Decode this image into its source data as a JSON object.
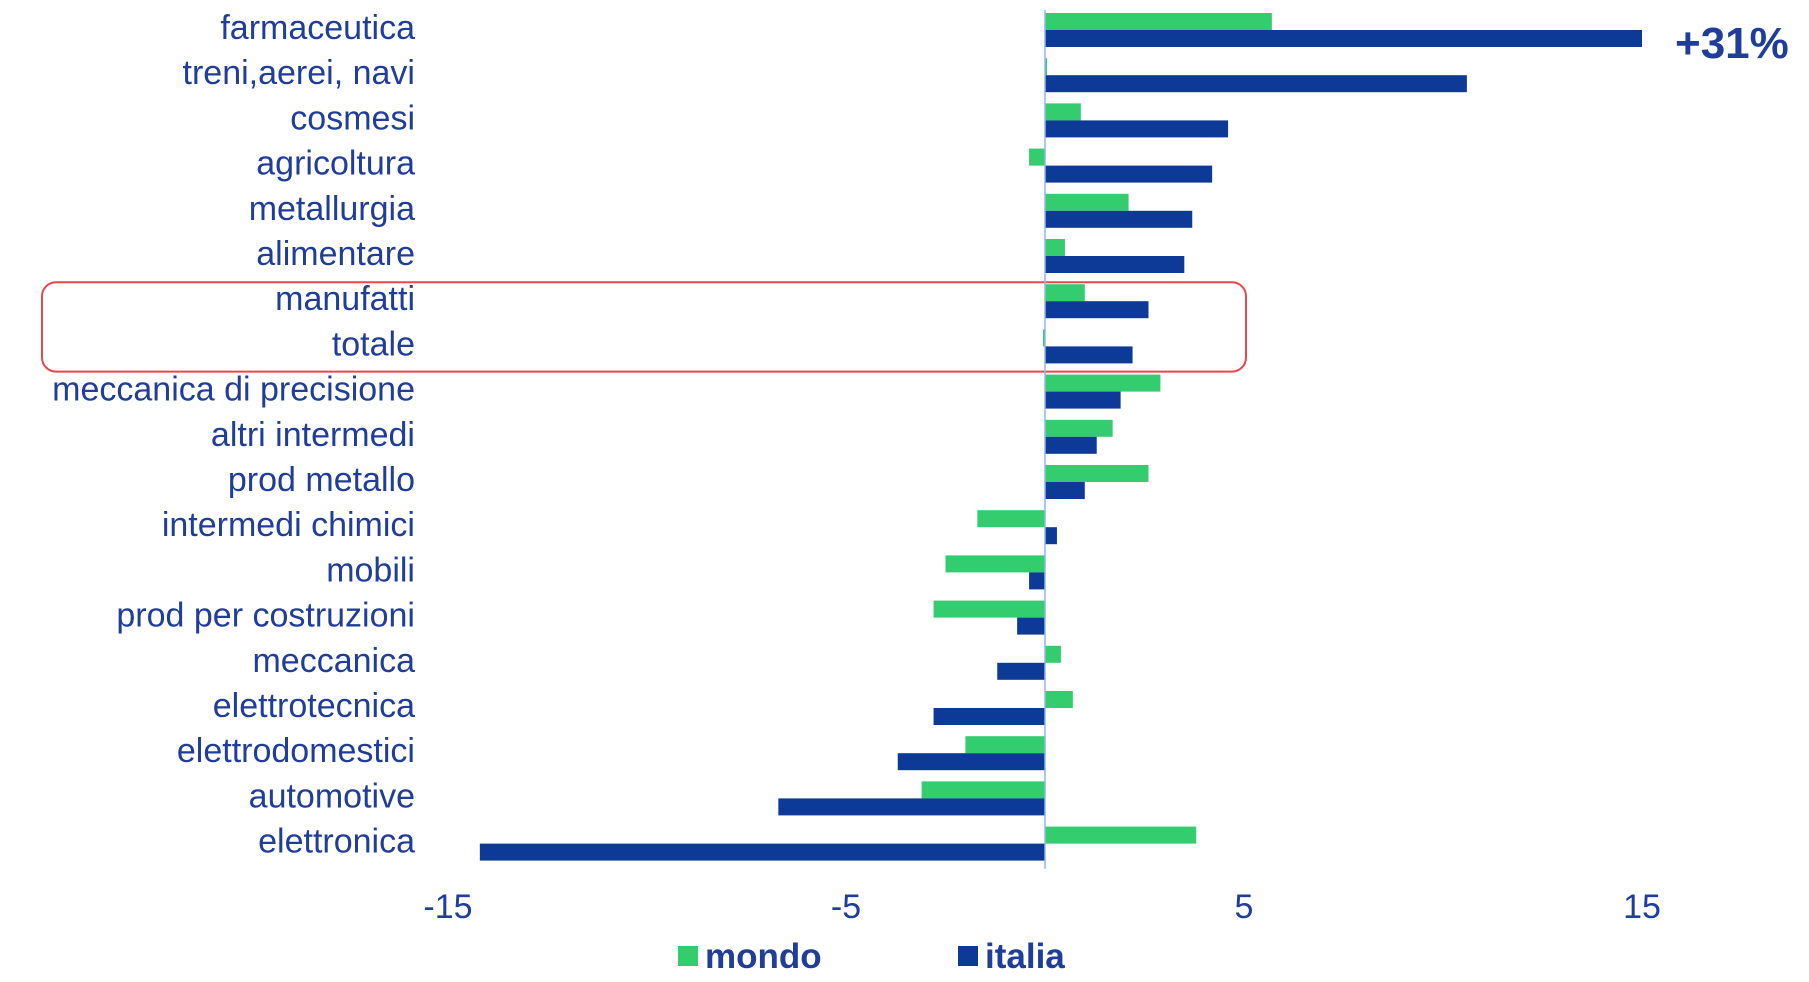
{
  "chart_data": {
    "type": "bar",
    "orientation": "horizontal",
    "categories": [
      "farmaceutica",
      "treni,aerei, navi",
      "cosmesi",
      "agricoltura",
      "metallurgia",
      "alimentare",
      "manufatti",
      "totale",
      "meccanica di precisione",
      "altri intermedi",
      "prod metallo",
      "intermedi chimici",
      "mobili",
      "prod per costruzioni",
      "meccanica",
      "elettrotecnica",
      "elettrodomestici",
      "automotive",
      "elettronica"
    ],
    "series": [
      {
        "name": "mondo",
        "color": "#33cc6e",
        "values": [
          5.7,
          0.05,
          0.9,
          -0.4,
          2.1,
          0.5,
          1.0,
          -0.05,
          2.9,
          1.7,
          2.6,
          -1.7,
          -2.5,
          -2.8,
          0.4,
          0.7,
          -2.0,
          -3.1,
          3.8
        ]
      },
      {
        "name": "italia",
        "color": "#0d3a96",
        "values": [
          15.0,
          10.6,
          4.6,
          4.2,
          3.7,
          3.5,
          2.6,
          2.2,
          1.9,
          1.3,
          1.0,
          0.3,
          -0.4,
          -0.7,
          -1.2,
          -2.8,
          -3.7,
          -6.7,
          -14.2
        ]
      }
    ],
    "xlim": [
      -15,
      15
    ],
    "xticks": [
      -15,
      -5,
      5,
      15
    ],
    "xtick_labels": [
      "-15",
      "-5",
      "5",
      "15"
    ],
    "annotation": "+31%",
    "highlighted_categories": [
      "manufatti",
      "totale"
    ],
    "highlight_color": "#e8474c",
    "legend_position": "bottom-center",
    "grid": false
  }
}
